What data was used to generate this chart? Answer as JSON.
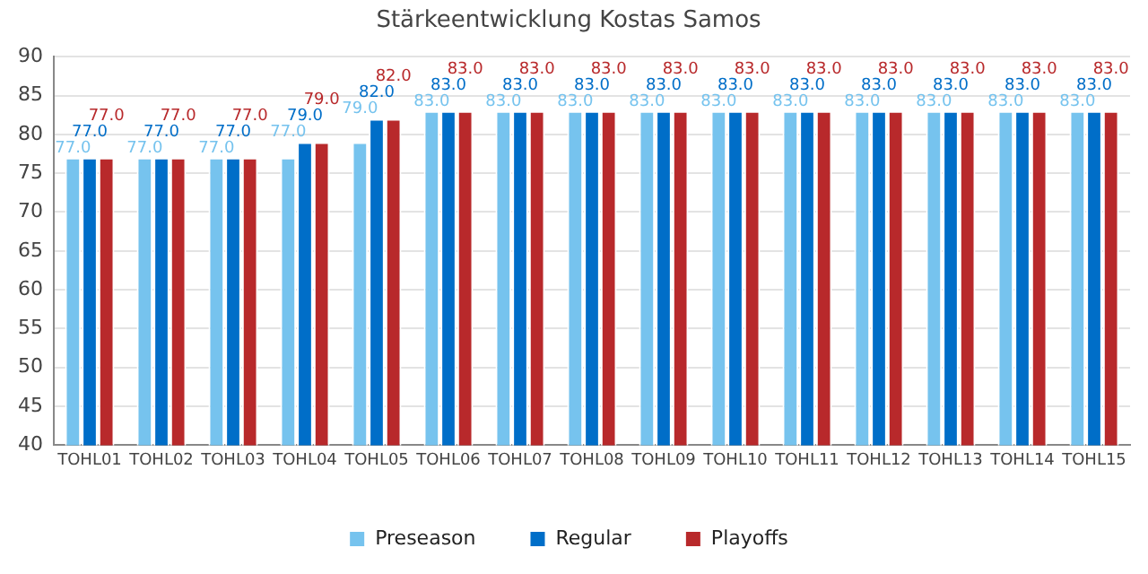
{
  "chart_data": {
    "type": "bar",
    "title": "Stärkeentwicklung Kostas Samos",
    "categories": [
      "TOHL01",
      "TOHL02",
      "TOHL03",
      "TOHL04",
      "TOHL05",
      "TOHL06",
      "TOHL07",
      "TOHL08",
      "TOHL09",
      "TOHL10",
      "TOHL11",
      "TOHL12",
      "TOHL13",
      "TOHL14",
      "TOHL15"
    ],
    "series": [
      {
        "name": "Preseason",
        "color": "#76c3ee",
        "values": [
          77,
          77,
          77,
          77,
          79,
          83,
          83,
          83,
          83,
          83,
          83,
          83,
          83,
          83,
          83
        ],
        "value_labels": [
          "77.0",
          "77.0",
          "77.0",
          "77.0",
          "79.0",
          "83.0",
          "83.0",
          "83.0",
          "83.0",
          "83.0",
          "83.0",
          "83.0",
          "83.0",
          "83.0",
          "83.0"
        ]
      },
      {
        "name": "Regular",
        "color": "#006ec8",
        "values": [
          77,
          77,
          77,
          79,
          82,
          83,
          83,
          83,
          83,
          83,
          83,
          83,
          83,
          83,
          83
        ],
        "value_labels": [
          "77.0",
          "77.0",
          "77.0",
          "79.0",
          "82.0",
          "83.0",
          "83.0",
          "83.0",
          "83.0",
          "83.0",
          "83.0",
          "83.0",
          "83.0",
          "83.0",
          "83.0"
        ]
      },
      {
        "name": "Playoffs",
        "color": "#b8292b",
        "values": [
          77,
          77,
          77,
          79,
          82,
          83,
          83,
          83,
          83,
          83,
          83,
          83,
          83,
          83,
          83
        ],
        "value_labels": [
          "77.0",
          "77.0",
          "77.0",
          "79.0",
          "82.0",
          "83.0",
          "83.0",
          "83.0",
          "83.0",
          "83.0",
          "83.0",
          "83.0",
          "83.0",
          "83.0",
          "83.0"
        ]
      }
    ],
    "ylim": [
      40,
      90
    ],
    "yticks": [
      40,
      45,
      50,
      55,
      60,
      65,
      70,
      75,
      80,
      85,
      90
    ],
    "grid": "y",
    "legend": "bottom"
  }
}
